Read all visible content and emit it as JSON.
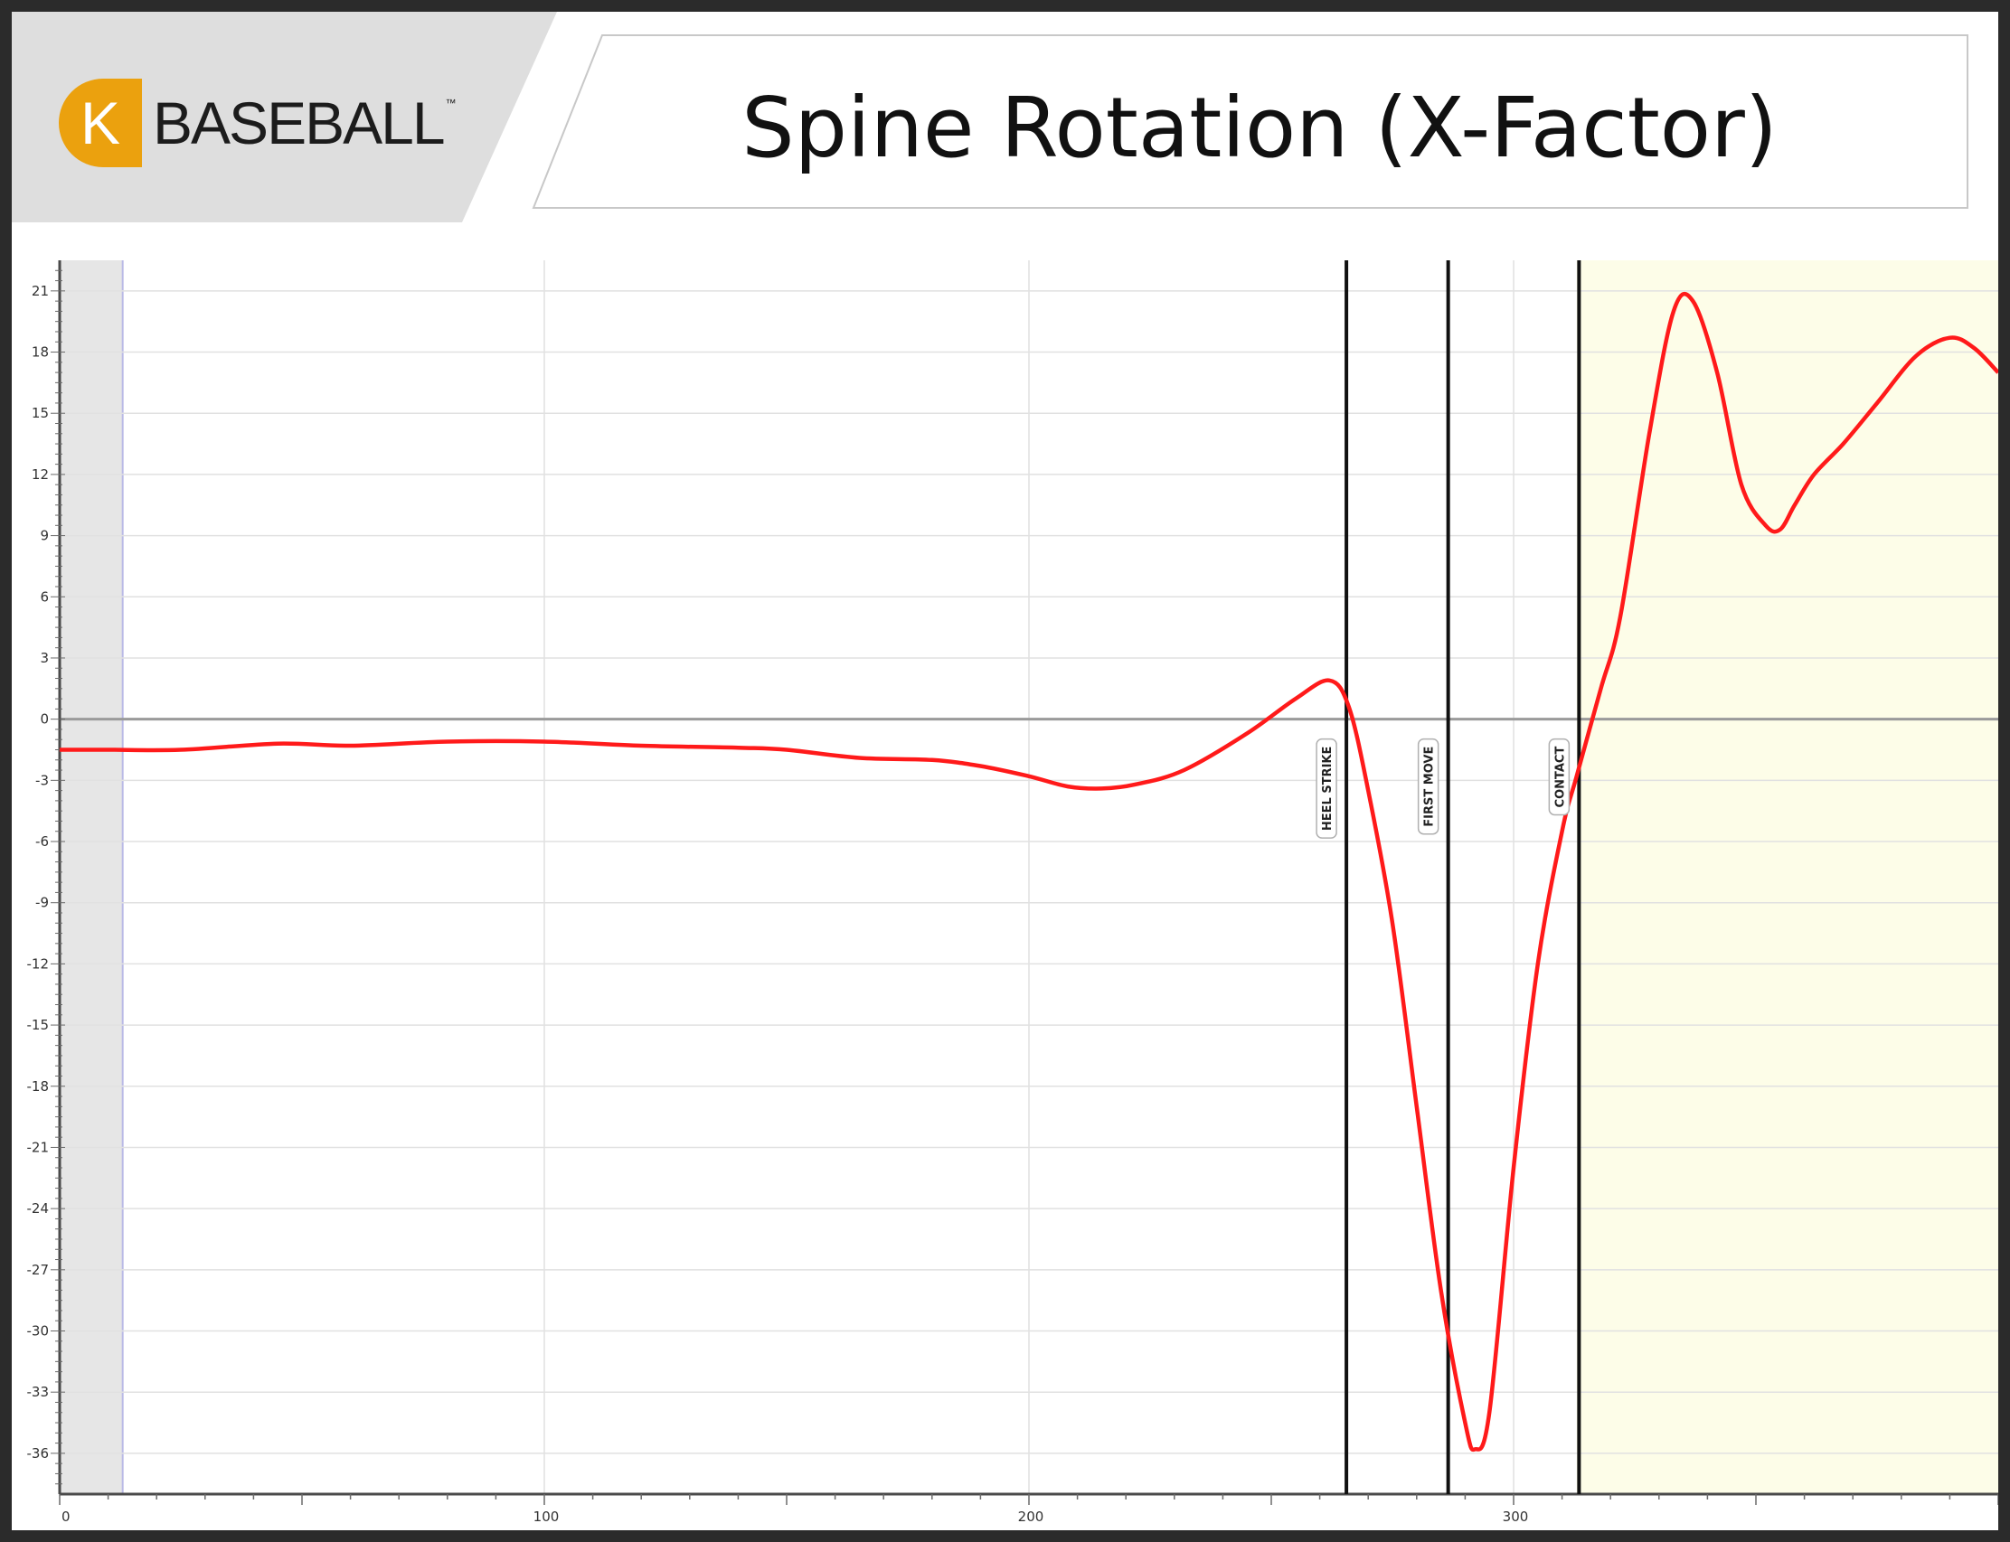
{
  "brand": {
    "badge_letter": "K",
    "wordmark": "BASEBALL",
    "trademark": "™",
    "accent_color": "#eba10e"
  },
  "header": {
    "title": "Spine Rotation (X-Factor)"
  },
  "chart_data": {
    "type": "line",
    "title": "Spine Rotation (X-Factor)",
    "xlabel": "",
    "ylabel": "",
    "xlim": [
      0,
      400
    ],
    "ylim": [
      -38,
      22.5
    ],
    "grid": true,
    "x_ticks": [
      0,
      100,
      200,
      300
    ],
    "y_ticks": [
      21,
      18,
      15,
      12,
      9,
      6,
      3,
      0,
      -3,
      -6,
      -9,
      -12,
      -15,
      -18,
      -21,
      -24,
      -27,
      -30,
      -33,
      -36
    ],
    "shaded_regions": [
      {
        "from": 0,
        "to": 13,
        "color": "#e6e6e6"
      },
      {
        "from": 313,
        "to": 400,
        "color": "#fdfde8"
      }
    ],
    "series": [
      {
        "color": "#ff1a1a",
        "x": [
          0,
          10,
          25,
          45,
          60,
          80,
          100,
          120,
          140,
          150,
          165,
          180,
          190,
          200,
          208,
          215,
          222,
          232,
          245,
          255,
          262,
          266,
          270,
          275,
          280,
          285,
          290,
          292,
          295,
          300,
          305,
          310,
          313,
          318,
          322,
          328,
          333,
          337,
          342,
          347,
          352,
          355,
          358,
          362,
          368,
          375,
          383,
          390,
          395,
          400
        ],
        "y": [
          -1.5,
          -1.5,
          -1.5,
          -1.2,
          -1.3,
          -1.1,
          -1.1,
          -1.3,
          -1.4,
          -1.5,
          -1.9,
          -2.0,
          -2.3,
          -2.8,
          -3.3,
          -3.4,
          -3.2,
          -2.5,
          -0.7,
          1.0,
          1.9,
          0.6,
          -3.5,
          -10,
          -19,
          -28,
          -34.5,
          -35.8,
          -34,
          -22,
          -12,
          -5.5,
          -2.8,
          1.5,
          5,
          14,
          20,
          20.5,
          17,
          11.5,
          9.5,
          9.3,
          10.5,
          12,
          13.5,
          15.5,
          17.8,
          18.7,
          18.2,
          17
        ]
      }
    ],
    "events": [
      {
        "label": "HEEL STRIKE",
        "x": 265.5
      },
      {
        "label": "FIRST MOVE",
        "x": 286.5
      },
      {
        "label": "CONTACT",
        "x": 313.5
      }
    ]
  }
}
